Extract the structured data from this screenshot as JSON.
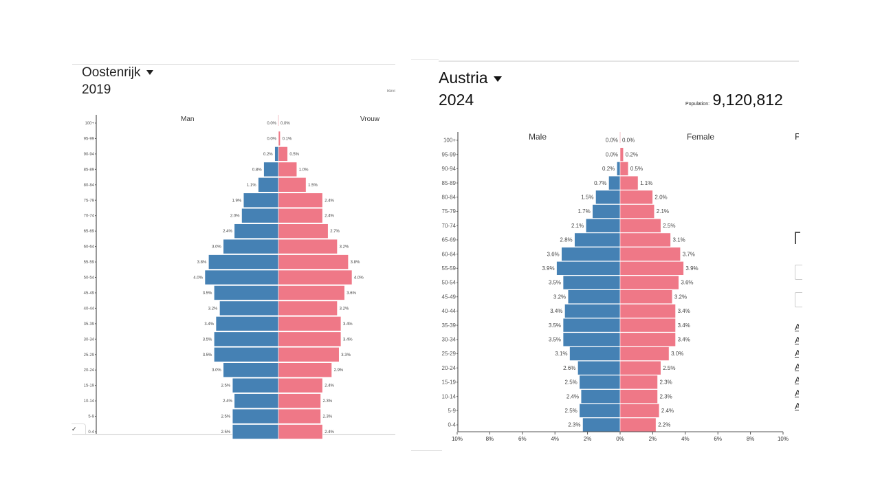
{
  "left": {
    "country": "Oostenrijk",
    "year": "2019",
    "truncated_label": "Bevo"
  },
  "right": {
    "country": "Austria",
    "year": "2024",
    "population_label": "Population:",
    "population_value": "9,120,812",
    "truncated_label": "P",
    "truncated_links": [
      "A",
      "A",
      "A",
      "A",
      "A",
      "A",
      "A"
    ]
  },
  "chart_data": [
    {
      "type": "bar",
      "subtype": "population-pyramid",
      "title": "Oostenrijk 2019",
      "categories": [
        "100+",
        "95-99",
        "90-94",
        "85-89",
        "80-84",
        "75-79",
        "70-74",
        "65-69",
        "60-64",
        "55-59",
        "50-54",
        "45-49",
        "40-44",
        "35-39",
        "30-34",
        "25-29",
        "20-24",
        "15-19",
        "10-14",
        "5-9",
        "0-4"
      ],
      "series": [
        {
          "name": "Man",
          "color": "#4581b4",
          "values": [
            0.0,
            0.0,
            0.2,
            0.8,
            1.1,
            1.9,
            2.0,
            2.4,
            3.0,
            3.8,
            4.0,
            3.5,
            3.2,
            3.4,
            3.5,
            3.5,
            3.0,
            2.5,
            2.4,
            2.5,
            2.5
          ]
        },
        {
          "name": "Vrouw",
          "color": "#ef7887",
          "values": [
            0.0,
            0.1,
            0.5,
            1.0,
            1.5,
            2.4,
            2.4,
            2.7,
            3.2,
            3.8,
            4.0,
            3.6,
            3.2,
            3.4,
            3.4,
            3.3,
            2.9,
            2.4,
            2.3,
            2.3,
            2.4
          ]
        }
      ],
      "xlim": [
        -10,
        10
      ],
      "unit": "%"
    },
    {
      "type": "bar",
      "subtype": "population-pyramid",
      "title": "Austria 2024",
      "categories": [
        "100+",
        "95-99",
        "90-94",
        "85-89",
        "80-84",
        "75-79",
        "70-74",
        "65-69",
        "60-64",
        "55-59",
        "50-54",
        "45-49",
        "40-44",
        "35-39",
        "30-34",
        "25-29",
        "20-24",
        "15-19",
        "10-14",
        "5-9",
        "0-4"
      ],
      "series": [
        {
          "name": "Male",
          "color": "#4581b4",
          "values": [
            0.0,
            0.0,
            0.2,
            0.7,
            1.5,
            1.7,
            2.1,
            2.8,
            3.6,
            3.9,
            3.5,
            3.2,
            3.4,
            3.5,
            3.5,
            3.1,
            2.6,
            2.5,
            2.4,
            2.5,
            2.3
          ]
        },
        {
          "name": "Female",
          "color": "#ef7887",
          "values": [
            0.0,
            0.2,
            0.5,
            1.1,
            2.0,
            2.1,
            2.5,
            3.1,
            3.7,
            3.9,
            3.6,
            3.2,
            3.4,
            3.4,
            3.4,
            3.0,
            2.5,
            2.3,
            2.3,
            2.4,
            2.2
          ]
        }
      ],
      "xlim": [
        -10,
        10
      ],
      "xticks": [
        "10%",
        "8%",
        "6%",
        "4%",
        "2%",
        "0%",
        "2%",
        "4%",
        "6%",
        "8%",
        "10%"
      ],
      "unit": "%"
    }
  ]
}
